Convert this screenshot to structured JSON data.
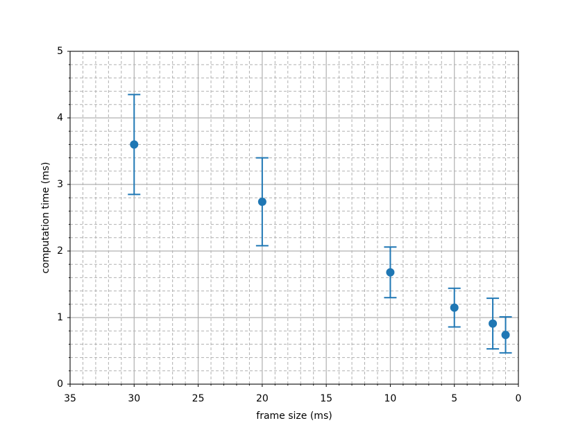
{
  "chart_data": {
    "type": "errorbar",
    "x_label": "frame size (ms)",
    "y_label": "computation time (ms)",
    "x": [
      30,
      20,
      10,
      5,
      2,
      1
    ],
    "series": [
      {
        "color": "#1f77b4",
        "values": [
          3.6,
          2.74,
          1.68,
          1.15,
          0.91,
          0.74
        ],
        "errors": [
          0.75,
          0.66,
          0.38,
          0.29,
          0.38,
          0.27
        ]
      }
    ],
    "xlim": [
      35,
      0
    ],
    "ylim": [
      0,
      5
    ],
    "xticks": [
      35,
      30,
      25,
      20,
      15,
      10,
      5,
      0
    ],
    "yticks": [
      0,
      1,
      2,
      3,
      4,
      5
    ],
    "grid": true,
    "minor_grid": true
  }
}
